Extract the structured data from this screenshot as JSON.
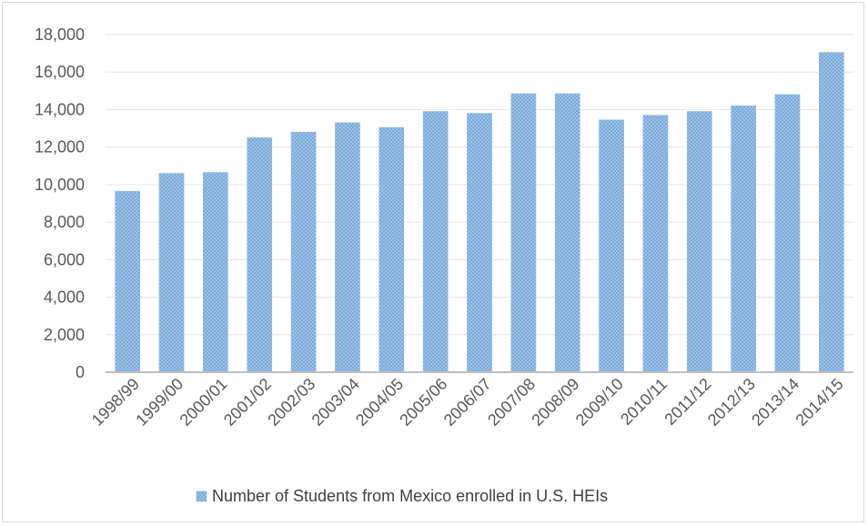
{
  "chart_data": {
    "type": "bar",
    "categories": [
      "1998/99",
      "1999/00",
      "2000/01",
      "2001/02",
      "2002/03",
      "2003/04",
      "2004/05",
      "2005/06",
      "2006/07",
      "2007/08",
      "2008/09",
      "2009/10",
      "2010/11",
      "2011/12",
      "2012/13",
      "2013/14",
      "2014/15"
    ],
    "series": [
      {
        "name": "Number of Students from Mexico enrolled in U.S. HEIs",
        "values": [
          9650,
          10600,
          10650,
          12500,
          12800,
          13300,
          13050,
          13900,
          13800,
          14850,
          14850,
          13450,
          13700,
          13900,
          14200,
          14800,
          17050
        ]
      }
    ],
    "ylim": [
      0,
      18000
    ],
    "yticks": [
      "0",
      "2,000",
      "4,000",
      "6,000",
      "8,000",
      "10,000",
      "12,000",
      "14,000",
      "16,000",
      "18,000"
    ],
    "ytick_values": [
      0,
      2000,
      4000,
      6000,
      8000,
      10000,
      12000,
      14000,
      16000,
      18000
    ],
    "grid": true,
    "legend_position": "bottom",
    "colors": {
      "bar_fill": "#9dc3e6",
      "bar_hatch": "#5b9bd5",
      "axis": "#bfbfbf",
      "grid": "#e6e6e6"
    }
  }
}
